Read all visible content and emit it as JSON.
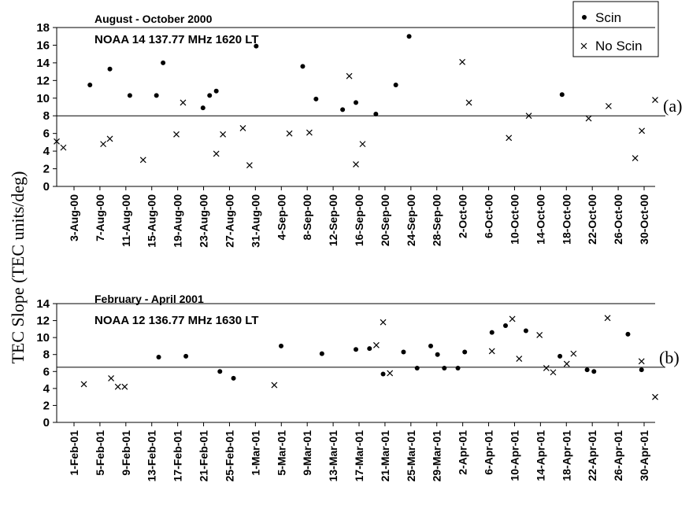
{
  "ylabel": "TEC Slope (TEC units/deg)",
  "legend": {
    "entries": [
      {
        "label": "Scin",
        "marker": "dot"
      },
      {
        "label": "No Scin",
        "marker": "cross"
      }
    ],
    "placement": "top-right"
  },
  "chart_data": [
    {
      "type": "scatter",
      "title": "August - October 2000",
      "subtitle": "NOAA 14 137.77 MHz 1620 LT",
      "panel_label": "(a)",
      "x_ticks": [
        "3-Aug-00",
        "7-Aug-00",
        "11-Aug-00",
        "15-Aug-00",
        "19-Aug-00",
        "23-Aug-00",
        "27-Aug-00",
        "31-Aug-00",
        "4-Sep-00",
        "8-Sep-00",
        "12-Sep-00",
        "16-Sep-00",
        "20-Sep-00",
        "24-Sep-00",
        "28-Sep-00",
        "2-Oct-00",
        "6-Oct-00",
        "10-Oct-00",
        "14-Oct-00",
        "18-Oct-00",
        "22-Oct-00",
        "26-Oct-00",
        "30-Oct-00"
      ],
      "x_range": [
        "2000-08-03",
        "2000-11-01"
      ],
      "ylim": [
        0,
        18
      ],
      "y_ticks": [
        0,
        2,
        4,
        6,
        8,
        10,
        12,
        14,
        16,
        18
      ],
      "threshold": 8,
      "series": [
        {
          "name": "Scin",
          "marker": "dot",
          "points": [
            {
              "x": "2000-08-08",
              "y": 11.5
            },
            {
              "x": "2000-08-11",
              "y": 13.3
            },
            {
              "x": "2000-08-14",
              "y": 10.3
            },
            {
              "x": "2000-08-18",
              "y": 10.3
            },
            {
              "x": "2000-08-19",
              "y": 14.0
            },
            {
              "x": "2000-08-25",
              "y": 8.9
            },
            {
              "x": "2000-08-26",
              "y": 10.3
            },
            {
              "x": "2000-08-27",
              "y": 10.8
            },
            {
              "x": "2000-09-02",
              "y": 15.9
            },
            {
              "x": "2000-09-09",
              "y": 13.6
            },
            {
              "x": "2000-09-11",
              "y": 9.9
            },
            {
              "x": "2000-09-15",
              "y": 8.7
            },
            {
              "x": "2000-09-17",
              "y": 9.5
            },
            {
              "x": "2000-09-20",
              "y": 8.2
            },
            {
              "x": "2000-09-23",
              "y": 11.5
            },
            {
              "x": "2000-09-25",
              "y": 17.0
            },
            {
              "x": "2000-10-18",
              "y": 10.4
            }
          ]
        },
        {
          "name": "No Scin",
          "marker": "cross",
          "points": [
            {
              "x": "2000-08-03",
              "y": 5.1
            },
            {
              "x": "2000-08-04",
              "y": 4.4
            },
            {
              "x": "2000-08-10",
              "y": 4.8
            },
            {
              "x": "2000-08-11",
              "y": 5.4
            },
            {
              "x": "2000-08-16",
              "y": 3.0
            },
            {
              "x": "2000-08-21",
              "y": 5.9
            },
            {
              "x": "2000-08-22",
              "y": 9.5
            },
            {
              "x": "2000-08-27",
              "y": 3.7
            },
            {
              "x": "2000-08-28",
              "y": 5.9
            },
            {
              "x": "2000-08-31",
              "y": 6.6
            },
            {
              "x": "2000-09-01",
              "y": 2.4
            },
            {
              "x": "2000-09-07",
              "y": 6.0
            },
            {
              "x": "2000-09-10",
              "y": 6.1
            },
            {
              "x": "2000-09-16",
              "y": 12.5
            },
            {
              "x": "2000-09-17",
              "y": 2.5
            },
            {
              "x": "2000-09-18",
              "y": 4.8
            },
            {
              "x": "2000-10-03",
              "y": 14.1
            },
            {
              "x": "2000-10-04",
              "y": 9.5
            },
            {
              "x": "2000-10-10",
              "y": 5.5
            },
            {
              "x": "2000-10-13",
              "y": 8.0
            },
            {
              "x": "2000-10-22",
              "y": 7.7
            },
            {
              "x": "2000-10-25",
              "y": 9.1
            },
            {
              "x": "2000-10-29",
              "y": 3.2
            },
            {
              "x": "2000-10-30",
              "y": 6.3
            },
            {
              "x": "2000-11-01",
              "y": 9.8
            }
          ]
        }
      ]
    },
    {
      "type": "scatter",
      "title": "February - April 2001",
      "subtitle": "NOAA 12 136.77 MHz 1630 LT",
      "panel_label": "(b)",
      "x_ticks": [
        "1-Feb-01",
        "5-Feb-01",
        "9-Feb-01",
        "13-Feb-01",
        "17-Feb-01",
        "21-Feb-01",
        "25-Feb-01",
        "1-Mar-01",
        "5-Mar-01",
        "9-Mar-01",
        "13-Mar-01",
        "17-Mar-01",
        "21-Mar-01",
        "25-Mar-01",
        "29-Mar-01",
        "2-Apr-01",
        "6-Apr-01",
        "10-Apr-01",
        "14-Apr-01",
        "18-Apr-01",
        "22-Apr-01",
        "26-Apr-01",
        "30-Apr-01"
      ],
      "x_range": [
        "2001-02-01",
        "2001-04-30"
      ],
      "ylim": [
        0,
        14
      ],
      "y_ticks": [
        0,
        2,
        4,
        6,
        8,
        10,
        12,
        14
      ],
      "threshold": 6.5,
      "series": [
        {
          "name": "Scin",
          "marker": "dot",
          "points": [
            {
              "x": "2001-02-16",
              "y": 7.7
            },
            {
              "x": "2001-02-20",
              "y": 7.8
            },
            {
              "x": "2001-02-25",
              "y": 6.0
            },
            {
              "x": "2001-02-27",
              "y": 5.2
            },
            {
              "x": "2001-03-06",
              "y": 9.0
            },
            {
              "x": "2001-03-12",
              "y": 8.1
            },
            {
              "x": "2001-03-17",
              "y": 8.6
            },
            {
              "x": "2001-03-19",
              "y": 8.7
            },
            {
              "x": "2001-03-21",
              "y": 5.7
            },
            {
              "x": "2001-03-24",
              "y": 8.3
            },
            {
              "x": "2001-03-26",
              "y": 6.4
            },
            {
              "x": "2001-03-28",
              "y": 9.0
            },
            {
              "x": "2001-03-29",
              "y": 8.0
            },
            {
              "x": "2001-03-30",
              "y": 6.4
            },
            {
              "x": "2001-04-01",
              "y": 6.4
            },
            {
              "x": "2001-04-02",
              "y": 8.3
            },
            {
              "x": "2001-04-06",
              "y": 10.6
            },
            {
              "x": "2001-04-08",
              "y": 11.4
            },
            {
              "x": "2001-04-11",
              "y": 10.8
            },
            {
              "x": "2001-04-16",
              "y": 7.8
            },
            {
              "x": "2001-04-20",
              "y": 6.2
            },
            {
              "x": "2001-04-21",
              "y": 6.0
            },
            {
              "x": "2001-04-26",
              "y": 10.4
            },
            {
              "x": "2001-04-28",
              "y": 6.2
            }
          ]
        },
        {
          "name": "No Scin",
          "marker": "cross",
          "points": [
            {
              "x": "2001-02-05",
              "y": 4.5
            },
            {
              "x": "2001-02-09",
              "y": 5.2
            },
            {
              "x": "2001-02-10",
              "y": 4.2
            },
            {
              "x": "2001-02-11",
              "y": 4.2
            },
            {
              "x": "2001-03-05",
              "y": 4.4
            },
            {
              "x": "2001-03-20",
              "y": 9.1
            },
            {
              "x": "2001-03-21",
              "y": 11.8
            },
            {
              "x": "2001-03-22",
              "y": 5.8
            },
            {
              "x": "2001-04-06",
              "y": 8.4
            },
            {
              "x": "2001-04-09",
              "y": 12.2
            },
            {
              "x": "2001-04-10",
              "y": 7.5
            },
            {
              "x": "2001-04-13",
              "y": 10.3
            },
            {
              "x": "2001-04-14",
              "y": 6.4
            },
            {
              "x": "2001-04-15",
              "y": 5.9
            },
            {
              "x": "2001-04-17",
              "y": 6.9
            },
            {
              "x": "2001-04-18",
              "y": 8.1
            },
            {
              "x": "2001-04-23",
              "y": 12.3
            },
            {
              "x": "2001-04-28",
              "y": 7.2
            },
            {
              "x": "2001-04-30",
              "y": 3.0
            }
          ]
        }
      ]
    }
  ]
}
